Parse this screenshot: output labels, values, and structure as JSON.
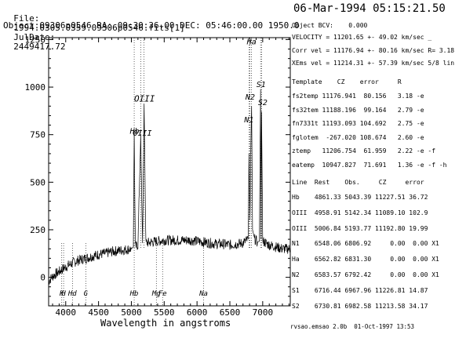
{
  "header": {
    "file_label": "File:",
    "file_value": "1994.0305.0359.09306p0546.fits[1]",
    "julian_label": "JulDate:",
    "julian_value": "2449417.72",
    "timestamp": "06-Mar-1994 05:15:21.50",
    "object_line": "Object:09306p0546 RA: 09:30:36.00 DEC: 05:46:00.00 1950.0"
  },
  "panel": {
    "object_bcv": "Object BCV:    0.000",
    "velocity": "VELOCITY = 11201.65 +- 49.02 km/sec _",
    "corr_vel": "Corr vel = 11176.94 +- 80.16 km/sec R= 3.18",
    "xems_vel": "XEms vel = 11214.31 +- 57.39 km/sec 5/8 lin",
    "template_header": "Template    CZ    error     R",
    "templates": [
      "fs2temp 11176.941  80.156   3.18 -e",
      "fs32tem 11188.196  99.164   2.79 -e",
      "fn7331t 11193.093 104.692   2.75 -e",
      "fglotem  -267.020 108.674   2.60 -e",
      "ztemp   11206.754  61.959   2.22 -e -f",
      "eatemp  10947.827  71.691   1.36 -e -f -h"
    ],
    "line_header": "Line  Rest    Obs.     CZ     error",
    "lines": [
      "Hb    4861.33 5043.39 11227.51 36.72",
      "OIII  4958.91 5142.34 11089.10 102.9",
      "OIII  5006.84 5193.77 11192.80 19.99",
      "N1    6548.06 6806.92     0.00  0.00 X1",
      "Ha    6562.82 6831.30     0.00  0.00 X1",
      "N2    6583.57 6792.42     0.00  0.00 X1",
      "S1    6716.44 6967.96 11226.81 14.87",
      "S2    6730.81 6982.58 11213.58 34.17"
    ]
  },
  "footer": "rvsao.emsao 2.0b  01-Oct-1997 13:53",
  "chart_data": {
    "type": "line",
    "title": "",
    "xlabel": "Wavelength in angstroms",
    "ylabel": "",
    "xlim": [
      3740,
      7420
    ],
    "ylim": [
      -150,
      1260
    ],
    "x_ticks": [
      4000,
      4500,
      5000,
      5500,
      6000,
      6500,
      7000
    ],
    "y_ticks": [
      0,
      250,
      500,
      750,
      1000,
      1250
    ],
    "series": [
      {
        "x": [
          3740,
          3800,
          3900,
          4000,
          4100,
          4200,
          4300,
          4400,
          4500,
          4600,
          4700,
          4800,
          4900,
          5000,
          5030,
          5043,
          5060,
          5100,
          5142,
          5170,
          5194,
          5220,
          5300,
          5400,
          5500,
          5600,
          5700,
          5800,
          5900,
          6000,
          6100,
          6200,
          6300,
          6400,
          6500,
          6600,
          6700,
          6780,
          6792,
          6806,
          6820,
          6831,
          6845,
          6880,
          6920,
          6950,
          6968,
          6975,
          6983,
          7000,
          7100,
          7200,
          7300,
          7420
        ],
        "y": [
          -20,
          5,
          30,
          55,
          75,
          90,
          100,
          110,
          120,
          125,
          135,
          140,
          145,
          150,
          160,
          770,
          160,
          170,
          750,
          180,
          910,
          180,
          185,
          190,
          195,
          195,
          195,
          195,
          195,
          190,
          185,
          180,
          175,
          175,
          170,
          175,
          180,
          200,
          650,
          300,
          700,
          900,
          250,
          200,
          185,
          190,
          990,
          200,
          870,
          190,
          170,
          160,
          150,
          150
        ]
      }
    ],
    "line_markers": [
      {
        "label": "Ha",
        "x": 6831
      },
      {
        "label": "N2",
        "x": 6792
      },
      {
        "label": "N1",
        "x": 6807
      },
      {
        "label": "S1",
        "x": 6968
      },
      {
        "label": "S2",
        "x": 6983
      },
      {
        "label": "OIII",
        "x": 5194
      },
      {
        "label": "OIII",
        "x": 5142
      },
      {
        "label": "Hb",
        "x": 5043
      }
    ],
    "absorption_markers": [
      {
        "label": "H",
        "x": 3968
      },
      {
        "label": "Hd",
        "x": 4102
      },
      {
        "label": "G",
        "x": 4305
      },
      {
        "label": "Hb",
        "x": 5043
      },
      {
        "label": "Mg",
        "x": 5380
      },
      {
        "label": "Fe",
        "x": 5475
      },
      {
        "label": "Na",
        "x": 6100
      }
    ],
    "absorption_markers_extra": [
      {
        "label": "K",
        "x": 3940
      }
    ]
  }
}
